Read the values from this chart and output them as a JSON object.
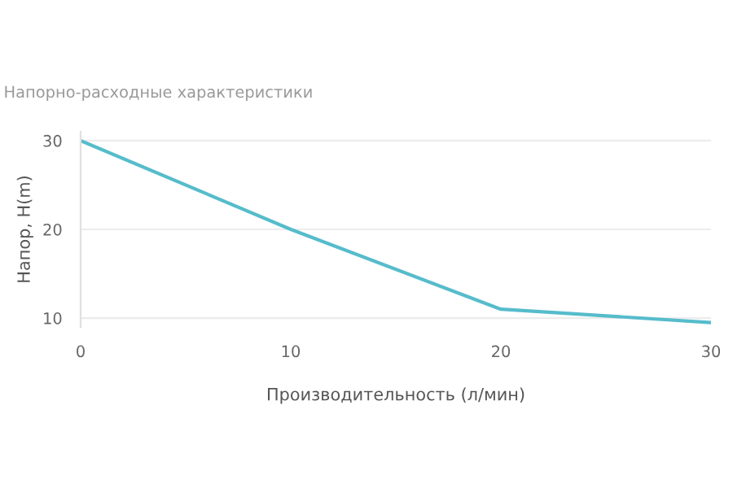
{
  "chart_data": {
    "type": "line",
    "title": "Напорно-расходные характеристики",
    "xlabel": "Производительность (л/мин)",
    "ylabel": "Напор, H(m)",
    "x": [
      0,
      10,
      20,
      30
    ],
    "series": [
      {
        "color": "#56bccb",
        "values": [
          30,
          20,
          11,
          9.5
        ]
      }
    ],
    "xlim": [
      0,
      30
    ],
    "xticks": [
      0,
      10,
      20,
      30
    ],
    "ylim": [
      9,
      31
    ],
    "yticks": [
      10,
      20,
      30
    ],
    "grid": "y",
    "legend": false,
    "marker": "none",
    "line_style": "solid"
  }
}
